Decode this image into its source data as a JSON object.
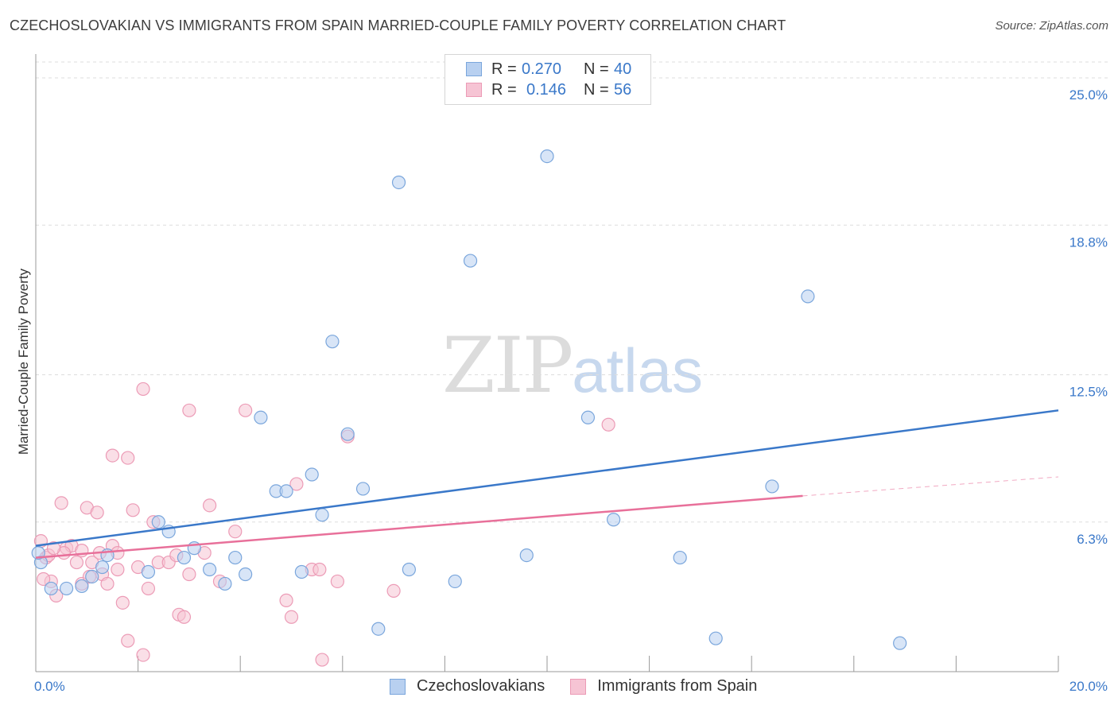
{
  "title": "CZECHOSLOVAKIAN VS IMMIGRANTS FROM SPAIN MARRIED-COUPLE FAMILY POVERTY CORRELATION CHART",
  "source": "Source: ZipAtlas.com",
  "watermark": {
    "zip": "ZIP",
    "atlas": "atlas"
  },
  "legend": {
    "rows": [
      {
        "r_label": "R =",
        "r_value": "0.270",
        "n_label": "N =",
        "n_value": "40"
      },
      {
        "r_label": "R =",
        "r_value": "0.146",
        "n_label": "N =",
        "n_value": "56"
      }
    ]
  },
  "bottom_legend": [
    "Czechoslovakians",
    "Immigrants from Spain"
  ],
  "colors": {
    "blue": "#3a78c9",
    "blue_fill": "#b8d0f0",
    "blue_stroke": "#7aa6dc",
    "pink": "#e8709a",
    "pink_fill": "#f6c4d4",
    "pink_stroke": "#ec9bb6",
    "grid": "#dddddd",
    "tick_text": "#3a78c9"
  },
  "chart_data": {
    "type": "scatter",
    "title": "CZECHOSLOVAKIAN VS IMMIGRANTS FROM SPAIN MARRIED-COUPLE FAMILY POVERTY CORRELATION CHART",
    "xlabel": "",
    "ylabel": "Married-Couple Family Poverty",
    "xlim": [
      0,
      20
    ],
    "ylim": [
      0,
      25
    ],
    "x_ticks": [
      "0.0%",
      "20.0%"
    ],
    "y_ticks": [
      {
        "value": 6.3,
        "label": "6.3%"
      },
      {
        "value": 12.5,
        "label": "12.5%"
      },
      {
        "value": 18.8,
        "label": "18.8%"
      },
      {
        "value": 25.0,
        "label": "25.0%"
      }
    ],
    "series": [
      {
        "name": "Czechoslovakians",
        "color": "blue",
        "points": [
          [
            0.1,
            4.6
          ],
          [
            0.3,
            3.5
          ],
          [
            0.6,
            3.5
          ],
          [
            0.9,
            3.6
          ],
          [
            1.1,
            4.0
          ],
          [
            1.4,
            4.9
          ],
          [
            1.3,
            4.4
          ],
          [
            2.2,
            4.2
          ],
          [
            2.4,
            6.3
          ],
          [
            2.6,
            5.9
          ],
          [
            2.9,
            4.8
          ],
          [
            3.1,
            5.2
          ],
          [
            3.4,
            4.3
          ],
          [
            3.7,
            3.7
          ],
          [
            3.9,
            4.8
          ],
          [
            4.1,
            4.1
          ],
          [
            4.4,
            10.7
          ],
          [
            4.7,
            7.6
          ],
          [
            4.9,
            7.6
          ],
          [
            5.2,
            4.2
          ],
          [
            5.4,
            8.3
          ],
          [
            5.6,
            6.6
          ],
          [
            5.8,
            13.9
          ],
          [
            6.1,
            10.0
          ],
          [
            6.4,
            7.7
          ],
          [
            6.7,
            1.8
          ],
          [
            7.1,
            20.6
          ],
          [
            7.3,
            4.3
          ],
          [
            8.2,
            3.8
          ],
          [
            8.5,
            17.3
          ],
          [
            9.6,
            4.9
          ],
          [
            10.0,
            21.7
          ],
          [
            10.8,
            10.7
          ],
          [
            11.3,
            6.4
          ],
          [
            12.6,
            4.8
          ],
          [
            13.3,
            1.4
          ],
          [
            14.4,
            7.8
          ],
          [
            15.1,
            15.8
          ],
          [
            16.9,
            1.2
          ],
          [
            0.05,
            5.0
          ]
        ]
      },
      {
        "name": "Immigrants from Spain",
        "color": "pink",
        "points": [
          [
            0.1,
            5.5
          ],
          [
            0.2,
            4.8
          ],
          [
            0.3,
            3.8
          ],
          [
            0.4,
            3.2
          ],
          [
            0.5,
            7.1
          ],
          [
            0.6,
            5.2
          ],
          [
            0.7,
            5.3
          ],
          [
            0.8,
            4.6
          ],
          [
            0.9,
            3.7
          ],
          [
            1.0,
            6.9
          ],
          [
            1.1,
            4.6
          ],
          [
            1.2,
            6.7
          ],
          [
            1.3,
            4.1
          ],
          [
            1.4,
            3.7
          ],
          [
            1.5,
            5.3
          ],
          [
            1.5,
            9.1
          ],
          [
            1.6,
            4.3
          ],
          [
            1.7,
            2.9
          ],
          [
            1.8,
            9.0
          ],
          [
            1.8,
            1.3
          ],
          [
            1.9,
            6.8
          ],
          [
            2.0,
            4.4
          ],
          [
            2.1,
            0.7
          ],
          [
            2.2,
            3.5
          ],
          [
            2.1,
            11.9
          ],
          [
            2.3,
            6.3
          ],
          [
            2.4,
            4.6
          ],
          [
            2.6,
            4.6
          ],
          [
            2.8,
            2.4
          ],
          [
            2.9,
            2.3
          ],
          [
            3.0,
            4.1
          ],
          [
            3.0,
            11.0
          ],
          [
            3.3,
            5.0
          ],
          [
            3.4,
            7.0
          ],
          [
            3.6,
            3.8
          ],
          [
            3.9,
            5.9
          ],
          [
            4.1,
            11.0
          ],
          [
            4.9,
            3.0
          ],
          [
            5.0,
            2.3
          ],
          [
            5.1,
            7.9
          ],
          [
            5.4,
            4.3
          ],
          [
            5.6,
            0.5
          ],
          [
            5.9,
            3.8
          ],
          [
            6.1,
            9.9
          ],
          [
            7.0,
            3.4
          ],
          [
            11.2,
            10.4
          ],
          [
            0.9,
            5.1
          ],
          [
            1.25,
            5.0
          ],
          [
            2.75,
            4.9
          ],
          [
            0.25,
            4.9
          ],
          [
            0.15,
            3.9
          ],
          [
            0.55,
            5.0
          ],
          [
            1.05,
            4.0
          ],
          [
            5.55,
            4.3
          ],
          [
            1.6,
            5.0
          ],
          [
            0.35,
            5.2
          ]
        ]
      }
    ],
    "trendlines": [
      {
        "series": "Czechoslovakians",
        "x0": 0,
        "y0": 5.3,
        "x1": 20,
        "y1": 11.0,
        "style": "solid"
      },
      {
        "series": "Immigrants from Spain",
        "x0": 0,
        "y0": 4.8,
        "x1": 15,
        "y1": 7.4,
        "style": "solid"
      },
      {
        "series": "Immigrants from Spain",
        "x0": 15,
        "y0": 7.4,
        "x1": 20,
        "y1": 8.2,
        "style": "dashed"
      }
    ]
  }
}
